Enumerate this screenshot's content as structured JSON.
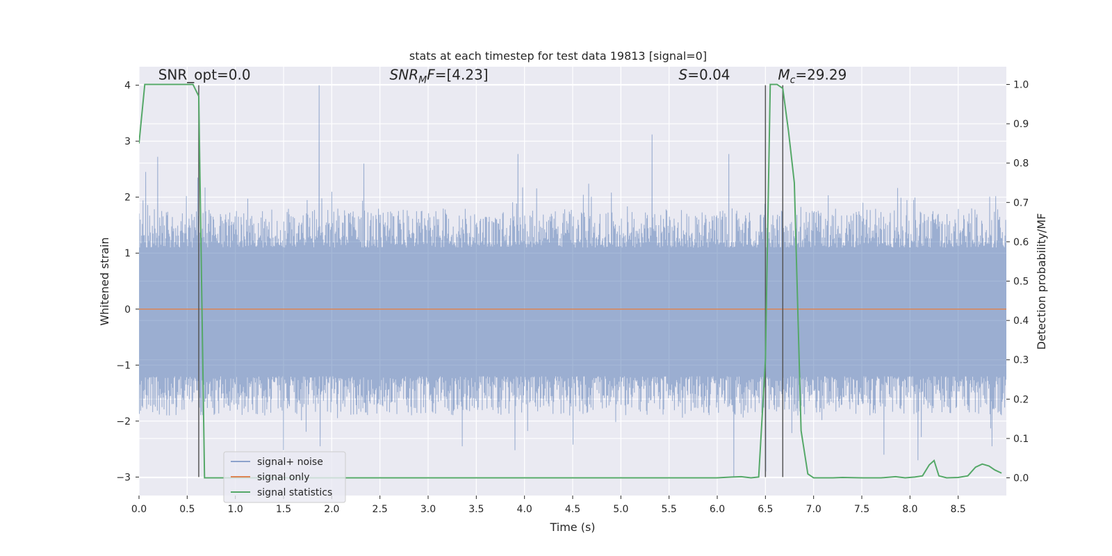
{
  "chart_data": {
    "type": "line",
    "title": "stats at each timestep for test data 19813 [signal=0]",
    "xlabel": "Time (s)",
    "ylabel_left": "Whitened strain",
    "ylabel_right": "Detection probability/MF",
    "xlim": [
      0.0,
      9.0
    ],
    "ylim_left": [
      -3.33,
      4.33
    ],
    "ylim_right": [
      -0.045,
      1.045
    ],
    "x_ticks": [
      0.0,
      0.5,
      1.0,
      1.5,
      2.0,
      2.5,
      3.0,
      3.5,
      4.0,
      4.5,
      5.0,
      5.5,
      6.0,
      6.5,
      7.0,
      7.5,
      8.0,
      8.5
    ],
    "x_tick_labels": [
      "0.0",
      "0.5",
      "1.0",
      "1.5",
      "2.0",
      "2.5",
      "3.0",
      "3.5",
      "4.0",
      "4.5",
      "5.0",
      "5.5",
      "6.0",
      "6.5",
      "7.0",
      "7.5",
      "8.0",
      "8.5"
    ],
    "y_left_ticks": [
      4,
      3,
      2,
      1,
      0,
      -1,
      -2,
      -3
    ],
    "y_left_tick_labels": [
      "4",
      "3",
      "2",
      "1",
      "0",
      "−1",
      "−2",
      "−3"
    ],
    "y_right_ticks": [
      1.0,
      0.9,
      0.8,
      0.7,
      0.6,
      0.5,
      0.4,
      0.3,
      0.2,
      0.1,
      0.0
    ],
    "y_right_tick_labels": [
      "1.0",
      "0.9",
      "0.8",
      "0.7",
      "0.6",
      "0.5",
      "0.4",
      "0.3",
      "0.2",
      "0.1",
      "0.0"
    ],
    "grid": true,
    "legend_placement": "lower-left",
    "series": [
      {
        "name": "signal+ noise",
        "axis": "left",
        "color": "#4c72b0",
        "description_envelope": {
          "typical_upper": [
            1.1,
            1.8
          ],
          "typical_lower": [
            -1.2,
            -1.9
          ],
          "spikes": [
            {
              "x": 0.07,
              "y": 2.45
            },
            {
              "x": 0.19,
              "y": 2.72
            },
            {
              "x": 0.61,
              "y": 2.35
            },
            {
              "x": 1.87,
              "y": 4.0
            },
            {
              "x": 2.33,
              "y": 2.6
            },
            {
              "x": 3.93,
              "y": 2.77
            },
            {
              "x": 5.32,
              "y": 3.12
            },
            {
              "x": 6.12,
              "y": 2.77
            },
            {
              "x": 6.68,
              "y": 2.05
            },
            {
              "x": 1.5,
              "y": -2.52
            },
            {
              "x": 1.88,
              "y": -2.45
            },
            {
              "x": 3.35,
              "y": -2.45
            },
            {
              "x": 3.9,
              "y": -2.52
            },
            {
              "x": 4.5,
              "y": -2.42
            },
            {
              "x": 6.17,
              "y": -3.0
            },
            {
              "x": 6.5,
              "y": -2.9
            },
            {
              "x": 7.73,
              "y": -2.6
            },
            {
              "x": 8.08,
              "y": -2.7
            },
            {
              "x": 8.85,
              "y": -2.45
            }
          ]
        }
      },
      {
        "name": "signal only",
        "axis": "left",
        "color": "#dd8452",
        "x": [
          0.0,
          9.0
        ],
        "y": [
          0.0,
          0.0
        ]
      },
      {
        "name": "signal statistics",
        "axis": "right",
        "color": "#55a868",
        "x": [
          0.0,
          0.06,
          0.12,
          0.2,
          0.3,
          0.4,
          0.5,
          0.56,
          0.62,
          0.68,
          0.75,
          1.0,
          1.5,
          2.0,
          2.5,
          3.0,
          3.5,
          4.0,
          4.5,
          5.0,
          5.5,
          6.0,
          6.15,
          6.25,
          6.35,
          6.43,
          6.5,
          6.55,
          6.62,
          6.68,
          6.74,
          6.8,
          6.87,
          6.94,
          7.0,
          7.1,
          7.2,
          7.3,
          7.5,
          7.7,
          7.85,
          7.95,
          8.05,
          8.13,
          8.2,
          8.25,
          8.3,
          8.38,
          8.5,
          8.6,
          8.68,
          8.75,
          8.82,
          8.88,
          8.95
        ],
        "y": [
          0.85,
          1.0,
          1.0,
          1.0,
          1.0,
          1.0,
          1.0,
          1.0,
          0.97,
          0.0,
          0.0,
          0.0,
          0.0,
          0.0,
          0.0,
          0.0,
          0.0,
          0.0,
          0.0,
          0.0,
          0.0,
          0.0,
          0.002,
          0.003,
          0.0,
          0.002,
          0.3,
          1.0,
          1.0,
          0.99,
          0.88,
          0.75,
          0.12,
          0.01,
          0.0,
          0.0,
          0.0,
          0.001,
          0.0,
          0.0,
          0.003,
          0.0,
          0.002,
          0.005,
          0.033,
          0.044,
          0.005,
          0.0,
          0.001,
          0.005,
          0.027,
          0.035,
          0.03,
          0.02,
          0.012
        ]
      }
    ],
    "vlines": [
      {
        "x": 0.62,
        "color": "#555555"
      },
      {
        "x": 6.5,
        "color": "#555555"
      },
      {
        "x": 6.68,
        "color": "#555555"
      }
    ],
    "annotations": [
      {
        "text": "SNR_opt=0.0",
        "x": 0.2,
        "y": 4.1,
        "style": "normal"
      },
      {
        "text_parts": [
          "SNR",
          "M",
          "F=[4.23]"
        ],
        "x": 2.6,
        "y": 4.1,
        "style": "math_sub"
      },
      {
        "text_parts": [
          "S",
          "",
          "=0.04"
        ],
        "x": 5.6,
        "y": 4.1,
        "style": "math_italic"
      },
      {
        "text_parts": [
          "M",
          "c",
          "=29.29"
        ],
        "x": 6.63,
        "y": 4.1,
        "style": "math_sub"
      }
    ]
  }
}
